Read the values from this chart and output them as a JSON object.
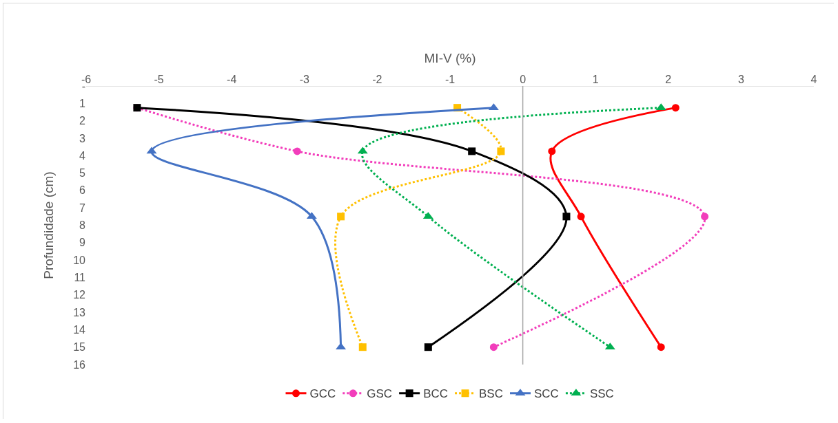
{
  "chart_data": {
    "type": "line",
    "xlabel": "MI-V (%)",
    "ylabel": "Profundidade (cm)",
    "xlim": [
      -6,
      4
    ],
    "xticks": [
      -6,
      -5,
      -4,
      -3,
      -2,
      -1,
      0,
      1,
      2,
      3,
      4
    ],
    "ylim": [
      16,
      0
    ],
    "yticks": [
      {
        "value": 0,
        "label": "-"
      },
      1,
      2,
      3,
      4,
      5,
      6,
      7,
      8,
      9,
      10,
      11,
      12,
      13,
      14,
      15,
      16
    ],
    "grid": false,
    "legend": "bottom",
    "ref_lines": [
      {
        "axis": "x",
        "value": 0,
        "color": "#a6a6a6"
      }
    ],
    "series": [
      {
        "name": "GCC",
        "color": "#ff0000",
        "marker": "circle",
        "line_style": "solid",
        "x": [
          2.1,
          0.4,
          0.8,
          1.9
        ],
        "values": [
          1.25,
          3.75,
          7.5,
          15
        ]
      },
      {
        "name": "GSC",
        "color": "#f23dbb",
        "marker": "circle",
        "line_style": "dotted",
        "x": [
          -5.3,
          -3.1,
          2.5,
          -0.4
        ],
        "values": [
          1.25,
          3.75,
          7.5,
          15
        ]
      },
      {
        "name": "BCC",
        "color": "#000000",
        "marker": "square",
        "line_style": "solid",
        "x": [
          -5.3,
          -0.7,
          0.6,
          -1.3
        ],
        "values": [
          1.25,
          3.75,
          7.5,
          15
        ]
      },
      {
        "name": "BSC",
        "color": "#ffc000",
        "marker": "square",
        "line_style": "dotted",
        "x": [
          -0.9,
          -0.3,
          -2.5,
          -2.2
        ],
        "values": [
          1.25,
          3.75,
          7.5,
          15
        ]
      },
      {
        "name": "SCC",
        "color": "#4472c4",
        "marker": "triangle",
        "line_style": "solid",
        "x": [
          -0.4,
          -5.1,
          -2.9,
          -2.5
        ],
        "values": [
          1.25,
          3.75,
          7.5,
          15
        ]
      },
      {
        "name": "SSC",
        "color": "#00b050",
        "marker": "triangle",
        "line_style": "dotted",
        "x": [
          1.9,
          -2.2,
          -1.3,
          1.2
        ],
        "values": [
          1.25,
          3.75,
          7.5,
          15
        ]
      }
    ]
  }
}
